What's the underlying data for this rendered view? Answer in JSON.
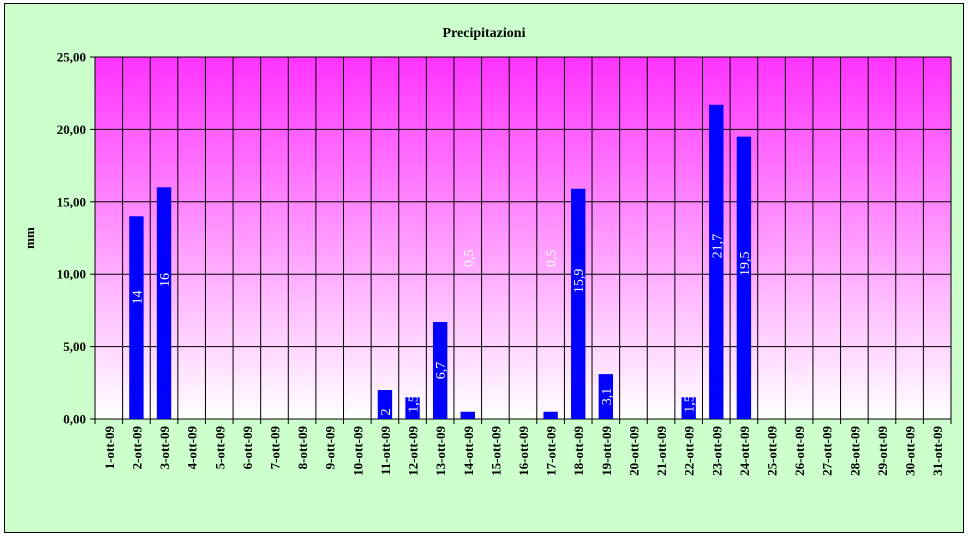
{
  "chart_data": {
    "type": "bar",
    "title": "Precipitazioni",
    "ylabel": "mm",
    "xlabel": "",
    "ylim": [
      0,
      25
    ],
    "yticks": [
      "0,00",
      "5,00",
      "10,00",
      "15,00",
      "20,00",
      "25,00"
    ],
    "grid": true,
    "categories": [
      "1-ott-09",
      "2-ott-09",
      "3-ott-09",
      "4-ott-09",
      "5-ott-09",
      "6-ott-09",
      "7-ott-09",
      "8-ott-09",
      "9-ott-09",
      "10-ott-09",
      "11-ott-09",
      "12-ott-09",
      "13-ott-09",
      "14-ott-09",
      "15-ott-09",
      "16-ott-09",
      "17-ott-09",
      "18-ott-09",
      "19-ott-09",
      "20-ott-09",
      "21-ott-09",
      "22-ott-09",
      "23-ott-09",
      "24-ott-09",
      "25-ott-09",
      "26-ott-09",
      "27-ott-09",
      "28-ott-09",
      "29-ott-09",
      "30-ott-09",
      "31-ott-09"
    ],
    "values": [
      0,
      14,
      16,
      0,
      0,
      0,
      0,
      0,
      0,
      0,
      2,
      1.5,
      6.7,
      0.5,
      0,
      0,
      0.5,
      15.9,
      3.1,
      0,
      0,
      1.5,
      21.7,
      19.5,
      0,
      0,
      0,
      0,
      0,
      0,
      0
    ],
    "data_labels": [
      "",
      "14",
      "16",
      "",
      "",
      "",
      "",
      "",
      "",
      "",
      "2",
      "1,5",
      "6,7",
      "0,5",
      "",
      "",
      "0,5",
      "15,9",
      "3,1",
      "",
      "",
      "1,5",
      "21,7",
      "19,5",
      "",
      "",
      "",
      "",
      "",
      "",
      ""
    ],
    "colors": {
      "bar": "#0000ff",
      "plot_top": "#ff33ff",
      "plot_bottom": "#ffffff",
      "frame": "#ccffcc",
      "data_label": "#ffffff"
    }
  }
}
